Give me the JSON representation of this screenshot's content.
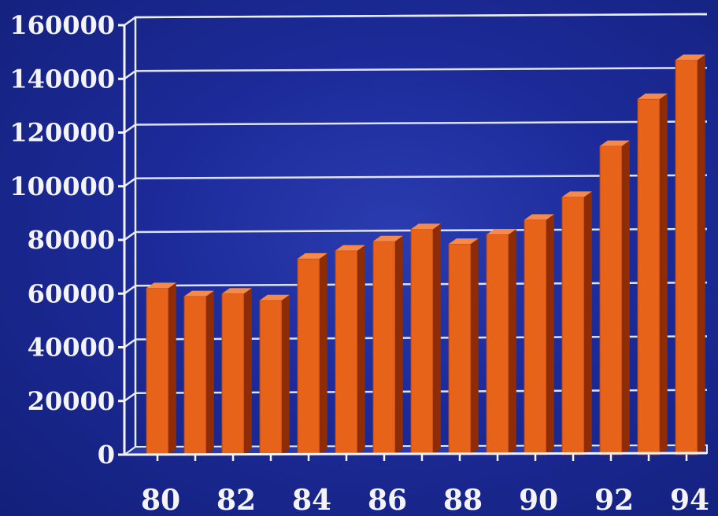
{
  "chart_data": {
    "type": "bar",
    "title": "",
    "xlabel": "",
    "ylabel": "",
    "categories": [
      "80",
      "81",
      "82",
      "83",
      "84",
      "85",
      "86",
      "87",
      "88",
      "89",
      "90",
      "91",
      "92",
      "93",
      "94"
    ],
    "x_tick_labels": [
      "80",
      "82",
      "84",
      "86",
      "88",
      "90",
      "92",
      "94"
    ],
    "values": [
      62000,
      59000,
      60000,
      57500,
      73000,
      76000,
      79500,
      84000,
      78500,
      82000,
      87500,
      96000,
      115000,
      132500,
      147000
    ],
    "ylim": [
      0,
      160000
    ],
    "y_ticks": [
      "0",
      "20000",
      "40000",
      "60000",
      "80000",
      "100000",
      "120000",
      "140000",
      "160000"
    ],
    "grid": true,
    "style": "3d-bar",
    "colors": {
      "bar_front": "#e8631a",
      "bar_side": "#8e2c08",
      "bar_top": "#f58a4a",
      "grid": "#e8ecf4",
      "axis": "#f4f4f8",
      "text": "#f4f4f8"
    }
  }
}
